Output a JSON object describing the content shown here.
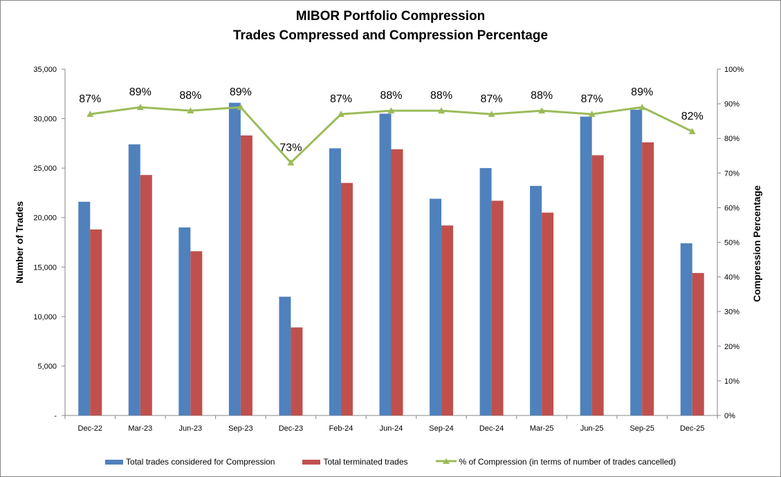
{
  "chart_data": {
    "type": "bar+line",
    "title": "MIBOR Portfolio Compression",
    "subtitle": "Trades Compressed and Compression Percentage",
    "ylabel": "Number of Trades",
    "y2label": "Compression Percentage",
    "ylim": [
      0,
      35000
    ],
    "y2lim": [
      0,
      100
    ],
    "yticks": [
      "-",
      "5,000",
      "10,000",
      "15,000",
      "20,000",
      "25,000",
      "30,000",
      "35,000"
    ],
    "y2ticks": [
      "0%",
      "10%",
      "20%",
      "30%",
      "40%",
      "50%",
      "60%",
      "70%",
      "80%",
      "90%",
      "100%"
    ],
    "categories": [
      "Dec-22",
      "Mar-23",
      "Jun-23",
      "Sep-23",
      "Dec-23",
      "Feb-24",
      "Jun-24",
      "Sep-24",
      "Dec-24",
      "Mar-25",
      "Jun-25",
      "Sep-25",
      "Dec-25"
    ],
    "series": [
      {
        "name": "Total trades considered for Compression",
        "type": "bar",
        "color": "#4F81BD",
        "values": [
          21600,
          27400,
          19000,
          31600,
          12000,
          27000,
          30500,
          21900,
          25000,
          23200,
          30200,
          30900,
          17400
        ]
      },
      {
        "name": "Total terminated trades",
        "type": "bar",
        "color": "#C0504D",
        "values": [
          18800,
          24300,
          16600,
          28300,
          8900,
          23500,
          26900,
          19200,
          21700,
          20500,
          26300,
          27600,
          14400
        ]
      },
      {
        "name": "% of Compression (in terms of number of trades cancelled)",
        "type": "line",
        "axis": "right",
        "color": "#9BBB59",
        "values": [
          87,
          89,
          88,
          89,
          73,
          87,
          88,
          88,
          87,
          88,
          87,
          89,
          82
        ],
        "labels": [
          "87%",
          "89%",
          "88%",
          "89%",
          "73%",
          "87%",
          "88%",
          "88%",
          "87%",
          "88%",
          "87%",
          "89%",
          "82%"
        ]
      }
    ],
    "grid": false,
    "legend": "bottom"
  }
}
